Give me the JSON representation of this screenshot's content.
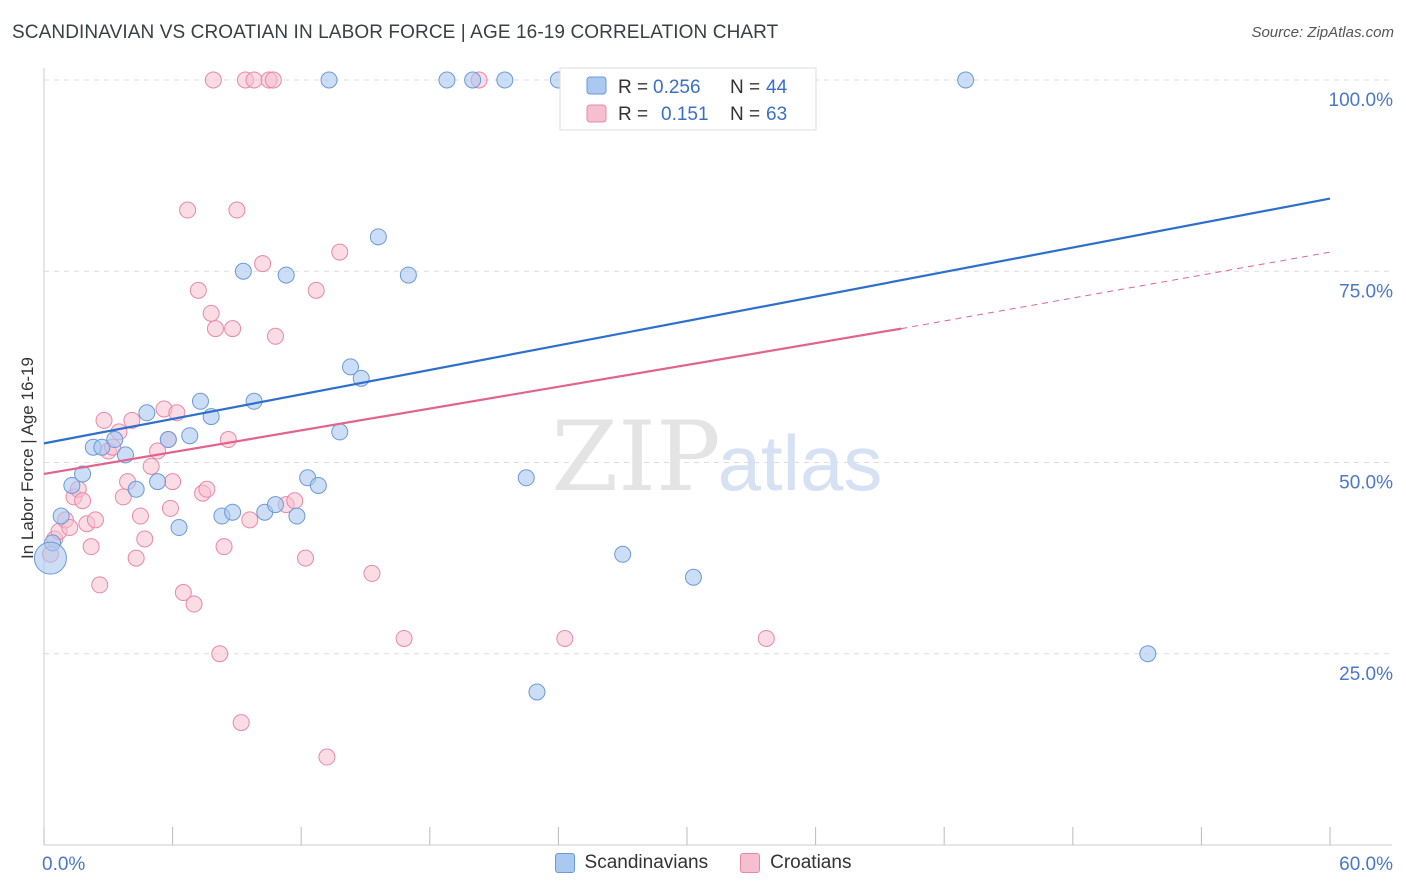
{
  "title": "SCANDINAVIAN VS CROATIAN IN LABOR FORCE | AGE 16-19 CORRELATION CHART",
  "source": "Source: ZipAtlas.com",
  "watermark": {
    "zip": "ZIP",
    "atlas": "atlas"
  },
  "colors": {
    "blue_fill": "#aac8f0",
    "blue_stroke": "#6a9ad8",
    "blue_line": "#2f6fcc",
    "pink_fill": "#f6bfd0",
    "pink_stroke": "#e888a8",
    "pink_line": "#e0648e",
    "tick_label": "#4a78c8",
    "grid": "#dddddd"
  },
  "stats_legend": [
    {
      "r_label": "R = ",
      "r_value": "0.256",
      "n_label": "N = ",
      "n_value": "44"
    },
    {
      "r_label": "R = ",
      "r_value": "0.151",
      "n_label": "N = ",
      "n_value": "63"
    }
  ],
  "chart_data": {
    "type": "scatter",
    "title": "SCANDINAVIAN VS CROATIAN IN LABOR FORCE | AGE 16-19 CORRELATION CHART",
    "xlabel": "",
    "ylabel": "In Labor Force | Age 16-19",
    "xlim": [
      0,
      60
    ],
    "ylim": [
      0,
      100
    ],
    "x_tick_labels": [
      "0.0%",
      "60.0%"
    ],
    "y_tick_labels": [
      "25.0%",
      "50.0%",
      "75.0%",
      "100.0%"
    ],
    "y_ticks": [
      25,
      50,
      75,
      100
    ],
    "grid": true,
    "legend_position": "bottom-center",
    "series": [
      {
        "name": "Scandinavians",
        "color": "#aac8f0",
        "points": [
          [
            0.4,
            39.5
          ],
          [
            0.3,
            37.5
          ],
          [
            0.8,
            43.0
          ],
          [
            1.3,
            47.0
          ],
          [
            1.8,
            48.5
          ],
          [
            2.3,
            52.0
          ],
          [
            2.7,
            52.0
          ],
          [
            3.3,
            53.0
          ],
          [
            3.8,
            51.0
          ],
          [
            4.3,
            46.5
          ],
          [
            4.8,
            56.5
          ],
          [
            5.3,
            47.5
          ],
          [
            5.8,
            53.0
          ],
          [
            6.3,
            41.5
          ],
          [
            6.8,
            53.5
          ],
          [
            7.3,
            58.0
          ],
          [
            7.8,
            56.0
          ],
          [
            8.3,
            43.0
          ],
          [
            8.8,
            43.5
          ],
          [
            9.3,
            75.0
          ],
          [
            9.8,
            58.0
          ],
          [
            10.3,
            43.5
          ],
          [
            10.8,
            44.5
          ],
          [
            11.3,
            74.5
          ],
          [
            11.8,
            43.0
          ],
          [
            12.3,
            48.0
          ],
          [
            12.8,
            47.0
          ],
          [
            13.3,
            100.0
          ],
          [
            13.8,
            54.0
          ],
          [
            14.3,
            62.5
          ],
          [
            14.8,
            61.0
          ],
          [
            15.6,
            79.5
          ],
          [
            17.0,
            74.5
          ],
          [
            18.8,
            100.0
          ],
          [
            20.0,
            100.0
          ],
          [
            21.5,
            100.0
          ],
          [
            22.5,
            48.0
          ],
          [
            23.0,
            20.0
          ],
          [
            24.0,
            100.0
          ],
          [
            25.5,
            100.0
          ],
          [
            27.0,
            38.0
          ],
          [
            30.3,
            35.0
          ],
          [
            43.0,
            100.0
          ],
          [
            51.5,
            25.0
          ]
        ],
        "trend": {
          "x": [
            0,
            60
          ],
          "y": [
            52.5,
            84.5
          ]
        }
      },
      {
        "name": "Croatians",
        "color": "#f6bfd0",
        "points": [
          [
            0.3,
            38.0
          ],
          [
            0.5,
            40.0
          ],
          [
            0.7,
            41.0
          ],
          [
            1.0,
            42.5
          ],
          [
            1.2,
            41.5
          ],
          [
            1.4,
            45.5
          ],
          [
            1.6,
            46.5
          ],
          [
            1.8,
            45.0
          ],
          [
            2.0,
            42.0
          ],
          [
            2.2,
            39.0
          ],
          [
            2.4,
            42.5
          ],
          [
            2.6,
            34.0
          ],
          [
            2.8,
            55.5
          ],
          [
            3.0,
            51.5
          ],
          [
            3.2,
            52.0
          ],
          [
            3.5,
            54.0
          ],
          [
            3.7,
            45.5
          ],
          [
            3.9,
            47.5
          ],
          [
            4.1,
            55.5
          ],
          [
            4.3,
            37.5
          ],
          [
            4.5,
            43.0
          ],
          [
            4.7,
            40.0
          ],
          [
            5.0,
            49.5
          ],
          [
            5.3,
            51.5
          ],
          [
            5.6,
            57.0
          ],
          [
            5.8,
            53.0
          ],
          [
            6.0,
            47.5
          ],
          [
            6.2,
            56.5
          ],
          [
            6.5,
            33.0
          ],
          [
            6.7,
            83.0
          ],
          [
            7.0,
            31.5
          ],
          [
            7.2,
            72.5
          ],
          [
            7.4,
            46.0
          ],
          [
            7.6,
            46.5
          ],
          [
            7.8,
            69.5
          ],
          [
            8.0,
            67.5
          ],
          [
            8.2,
            25.0
          ],
          [
            8.4,
            39.0
          ],
          [
            8.6,
            53.0
          ],
          [
            8.8,
            67.5
          ],
          [
            9.0,
            83.0
          ],
          [
            9.2,
            16.0
          ],
          [
            9.4,
            100.0
          ],
          [
            9.6,
            42.5
          ],
          [
            9.8,
            100.0
          ],
          [
            10.2,
            76.0
          ],
          [
            10.5,
            100.0
          ],
          [
            10.8,
            66.5
          ],
          [
            11.3,
            44.5
          ],
          [
            11.7,
            45.0
          ],
          [
            12.2,
            37.5
          ],
          [
            12.7,
            72.5
          ],
          [
            13.2,
            11.5
          ],
          [
            13.8,
            77.5
          ],
          [
            15.3,
            35.5
          ],
          [
            16.8,
            27.0
          ],
          [
            20.3,
            100.0
          ],
          [
            24.3,
            27.0
          ],
          [
            29.0,
            100.0
          ],
          [
            33.7,
            27.0
          ],
          [
            7.9,
            100.0
          ],
          [
            10.7,
            100.0
          ],
          [
            5.9,
            44.0
          ]
        ],
        "trend": {
          "x": [
            0,
            40
          ],
          "y": [
            48.5,
            67.5
          ]
        },
        "trend_dashed": {
          "x": [
            40,
            60
          ],
          "y": [
            67.5,
            77.5
          ]
        }
      }
    ]
  }
}
